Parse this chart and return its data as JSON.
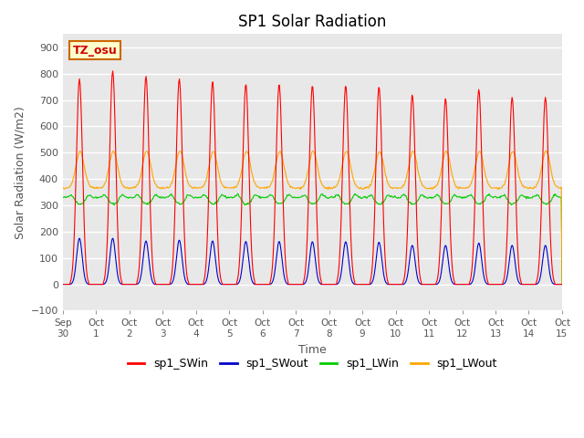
{
  "title": "SP1 Solar Radiation",
  "ylabel": "Solar Radiation (W/m2)",
  "xlabel": "Time",
  "ylim": [
    -100,
    950
  ],
  "yticks": [
    -100,
    0,
    100,
    200,
    300,
    400,
    500,
    600,
    700,
    800,
    900
  ],
  "xtick_labels": [
    "Sep 30",
    "Oct 1",
    "Oct 2",
    "Oct 3",
    "Oct 4",
    "Oct 5",
    "Oct 6",
    "Oct 7",
    "Oct 8",
    "Oct 9",
    "Oct 10",
    "Oct 11",
    "Oct 12",
    "Oct 13",
    "Oct 14",
    "Oct 15"
  ],
  "annotation_text": "TZ_osu",
  "annotation_bbox": {
    "facecolor": "#FFFFCC",
    "edgecolor": "#CC6600"
  },
  "annotation_color": "#CC0000",
  "colors": {
    "sp1_SWin": "#FF0000",
    "sp1_SWout": "#0000CC",
    "sp1_LWin": "#00CC00",
    "sp1_LWout": "#FFA500"
  },
  "legend_labels": [
    "sp1_SWin",
    "sp1_SWout",
    "sp1_LWin",
    "sp1_LWout"
  ],
  "background_color": "#E8E8E8",
  "grid_color": "#FFFFFF",
  "sw_peaks": [
    780,
    810,
    790,
    780,
    770,
    760,
    760,
    755,
    755,
    750,
    720,
    705,
    740,
    710,
    710
  ],
  "sw_out_peaks": [
    175,
    175,
    165,
    168,
    165,
    163,
    163,
    162,
    162,
    160,
    148,
    148,
    157,
    148,
    148
  ],
  "lw_in_baseline": 330,
  "lw_out_baseline": 365,
  "n_days": 15
}
